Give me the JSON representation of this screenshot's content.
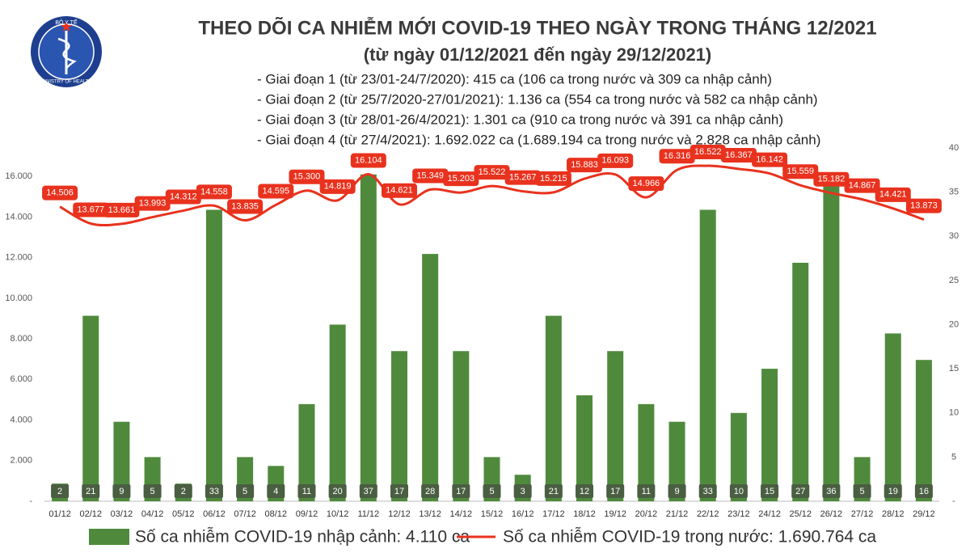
{
  "chart_data": {
    "type": "bar",
    "title": "THEO DÕI CA NHIỄM MỚI COVID-19 THEO NGÀY TRONG THÁNG 12/2021",
    "subtitle": "(từ ngày 01/12/2021 đến ngày 29/12/2021)",
    "notes": [
      "- Giai đoạn 1 (từ 23/01-24/7/2020): 415 ca (106 ca trong nước và 309 ca nhập cảnh)",
      "- Giai đoạn 2 (từ 25/7/2020-27/01/2021): 1.136 ca (554 ca trong nước và 582 ca nhập cảnh)",
      "- Giai đoạn 3 (từ 28/01-26/4/2021): 1.301 ca (910 ca trong nước và 391 ca nhập cảnh)",
      "- Giai đoạn 4 (từ 27/4/2021): 1.692.022 ca (1.689.194 ca trong nước và 2.828 ca nhập cảnh)"
    ],
    "logo": {
      "top": "BỘ Y TẾ",
      "bottom": "MINISTRY OF HEALTH"
    },
    "categories": [
      "01/12",
      "02/12",
      "03/12",
      "04/12",
      "05/12",
      "06/12",
      "07/12",
      "08/12",
      "09/12",
      "10/12",
      "11/12",
      "12/12",
      "13/12",
      "14/12",
      "15/12",
      "16/12",
      "17/12",
      "18/12",
      "19/12",
      "20/12",
      "21/12",
      "22/12",
      "23/12",
      "24/12",
      "25/12",
      "26/12",
      "27/12",
      "28/12",
      "29/12"
    ],
    "series": [
      {
        "name": "Số ca nhiễm COVID-19 nhập cảnh: 4.110 ca",
        "kind": "bar",
        "axis": "y2",
        "color": "#4f8a3c",
        "values": [
          2,
          21,
          9,
          5,
          2,
          33,
          5,
          4,
          11,
          20,
          37,
          17,
          28,
          17,
          5,
          3,
          21,
          12,
          17,
          11,
          9,
          33,
          10,
          15,
          27,
          36,
          5,
          19,
          16
        ]
      },
      {
        "name": "Số ca nhiễm COVID-19 trong nước: 1.690.764 ca",
        "kind": "line",
        "color": "#e8321e",
        "values": [
          14506,
          13677,
          13661,
          13993,
          14312,
          14558,
          13835,
          14595,
          15300,
          14819,
          16104,
          14621,
          15349,
          15203,
          15522,
          15267,
          15215,
          15883,
          16093,
          14966,
          16316,
          16522,
          16367,
          16142,
          15559,
          15182,
          14867,
          14421,
          13873
        ],
        "value_labels": [
          "14.506",
          "13.677",
          "13.661",
          "13.993",
          "14.312",
          "14.558",
          "13.835",
          "14.595",
          "15.300",
          "14.819",
          "16.104",
          "14.621",
          "15.349",
          "15.203",
          "15.522",
          "15.267",
          "15.215",
          "15.883",
          "16.093",
          "14.966",
          "16.316",
          "16.522",
          "16.367",
          "16.142",
          "15.559",
          "15.182",
          "14.867",
          "14.421",
          "13.873"
        ]
      }
    ],
    "ylim": [
      0,
      17400
    ],
    "yticks": [
      {
        "value": 0,
        "label": "-"
      },
      {
        "value": 2000,
        "label": "2.000"
      },
      {
        "value": 4000,
        "label": "4.000"
      },
      {
        "value": 6000,
        "label": "6.000"
      },
      {
        "value": 8000,
        "label": "8.000"
      },
      {
        "value": 10000,
        "label": "10.000"
      },
      {
        "value": 12000,
        "label": "12.000"
      },
      {
        "value": 14000,
        "label": "14.000"
      },
      {
        "value": 16000,
        "label": "16.000"
      }
    ],
    "y2lim": [
      0,
      40
    ],
    "y2ticks": [
      {
        "value": 0,
        "label": "-"
      },
      5,
      10,
      15,
      20,
      25,
      30,
      35,
      40
    ],
    "grid": false
  }
}
